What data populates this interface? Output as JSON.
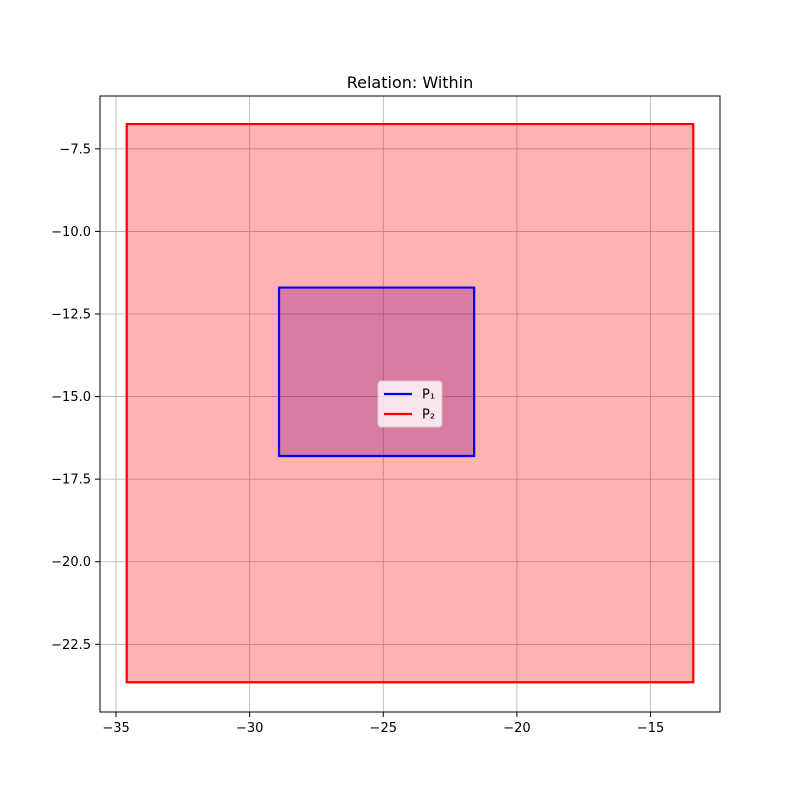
{
  "chart_data": {
    "type": "polygon",
    "title": "Relation: Within",
    "xlabel": "",
    "ylabel": "",
    "xlim": [
      -35.6,
      -12.4
    ],
    "ylim": [
      -24.55,
      -5.9
    ],
    "xticks": [
      -35,
      -30,
      -25,
      -20,
      -15
    ],
    "xtick_labels": [
      "−35",
      "−30",
      "−25",
      "−20",
      "−15"
    ],
    "yticks": [
      -7.5,
      -10.0,
      -12.5,
      -15.0,
      -17.5,
      -20.0,
      -22.5
    ],
    "ytick_labels": [
      "−7.5",
      "−10.0",
      "−12.5",
      "−15.0",
      "−17.5",
      "−20.0",
      "−22.5"
    ],
    "grid": true,
    "legend_position": "center",
    "series": [
      {
        "name": "P₁",
        "color": "#0000ff",
        "fill": "#800080",
        "points": [
          [
            -28.9,
            -11.7
          ],
          [
            -21.6,
            -11.7
          ],
          [
            -21.6,
            -16.8
          ],
          [
            -28.9,
            -16.8
          ]
        ]
      },
      {
        "name": "P₂",
        "color": "#ff0000",
        "fill": "#ff0000",
        "points": [
          [
            -34.6,
            -6.75
          ],
          [
            -13.4,
            -6.75
          ],
          [
            -13.4,
            -23.65
          ],
          [
            -34.6,
            -23.65
          ]
        ]
      }
    ]
  }
}
